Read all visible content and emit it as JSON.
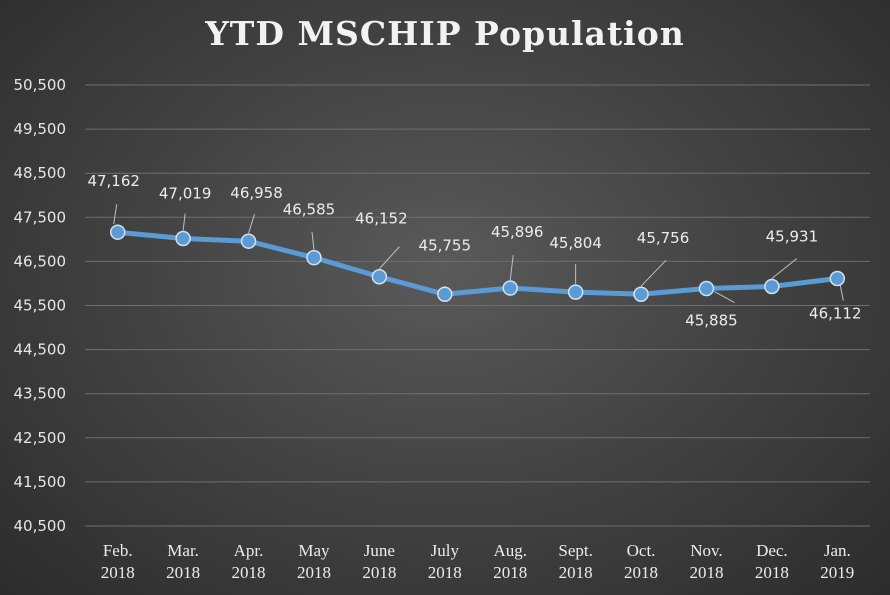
{
  "chart_data": {
    "type": "line",
    "title": "YTD MSCHIP Population",
    "xlabel": "",
    "ylabel": "",
    "categories": [
      [
        "Feb.",
        "2018"
      ],
      [
        "Mar.",
        "2018"
      ],
      [
        "Apr.",
        "2018"
      ],
      [
        "May",
        "2018"
      ],
      [
        "June",
        "2018"
      ],
      [
        "July",
        "2018"
      ],
      [
        "Aug.",
        "2018"
      ],
      [
        "Sept.",
        "2018"
      ],
      [
        "Oct.",
        "2018"
      ],
      [
        "Nov.",
        "2018"
      ],
      [
        "Dec.",
        "2018"
      ],
      [
        "Jan.",
        "2019"
      ]
    ],
    "series": [
      {
        "values": [
          47162,
          47019,
          46958,
          46585,
          46152,
          45755,
          45896,
          45804,
          45756,
          45885,
          45931,
          46112
        ],
        "color": "#5b9bd5"
      }
    ],
    "data_labels": [
      "47,162",
      "47,019",
      "46,958",
      "46,585",
      "46,152",
      "45,755",
      "45,896",
      "45,804",
      "45,756",
      "45,885",
      "45,931",
      "46,112"
    ],
    "ylim": [
      40500,
      50500
    ],
    "y_ticks": [
      40500,
      41500,
      42500,
      43500,
      44500,
      45500,
      46500,
      47500,
      48500,
      49500,
      50500
    ],
    "y_tick_labels": [
      "40,500",
      "41,500",
      "42,500",
      "43,500",
      "44,500",
      "45,500",
      "46,500",
      "47,500",
      "48,500",
      "49,500",
      "50,500"
    ],
    "grid": true,
    "legend": "none",
    "colors": {
      "gridline": "#6e6e6e",
      "line": "#5b9bd5",
      "text": "#ececec"
    }
  }
}
